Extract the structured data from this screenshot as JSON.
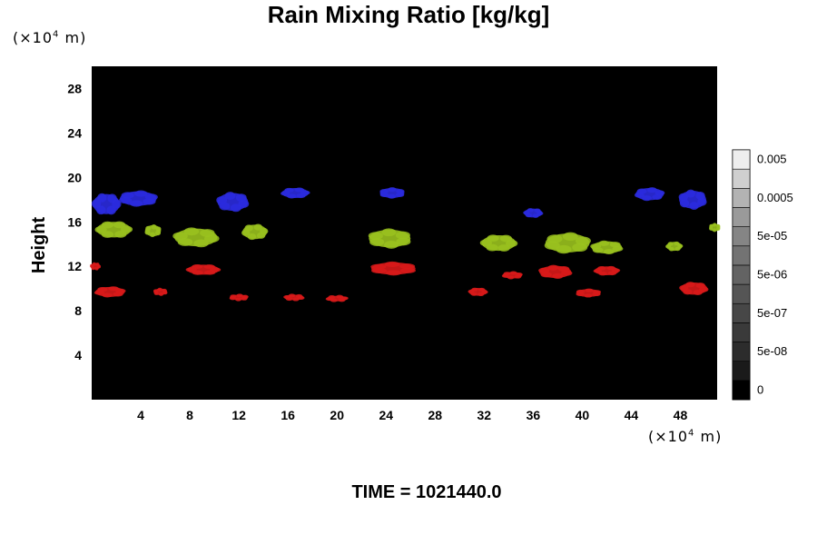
{
  "chart_data": {
    "type": "heatmap",
    "title": "Rain Mixing Ratio [kg/kg]",
    "ylabel": "Height",
    "xlabel": "",
    "x_unit": "(×10",
    "x_unit_exp": "4",
    "x_unit_suffix": " m)",
    "y_unit": "(×10",
    "y_unit_exp": "4",
    "y_unit_suffix": " m)",
    "xlim": [
      0,
      51
    ],
    "ylim": [
      0,
      30
    ],
    "x_ticks": [
      "4",
      "8",
      "12",
      "16",
      "20",
      "24",
      "28",
      "32",
      "36",
      "40",
      "44",
      "48"
    ],
    "y_ticks": [
      "4",
      "8",
      "12",
      "16",
      "20",
      "24",
      "28"
    ],
    "background_color": "#000000",
    "colorbar": {
      "labels": [
        "0",
        "5e-08",
        "5e-07",
        "5e-06",
        "5e-05",
        "0.0005",
        "0.005"
      ],
      "levels": 13,
      "colors": [
        "#000000",
        "#1a1a1a",
        "#2c2c2c",
        "#3a3a3a",
        "#474747",
        "#555555",
        "#636363",
        "#737373",
        "#858585",
        "#9a9a9a",
        "#b3b3b3",
        "#cfcfcf",
        "#eeeeee"
      ]
    },
    "layers": [
      {
        "color": "#2b2bdf",
        "y_range": [
          16.5,
          19.5
        ]
      },
      {
        "color": "#9ac21e",
        "y_range": [
          12.8,
          16.5
        ]
      },
      {
        "color": "#d91a1a",
        "y_range": [
          8.5,
          12.8
        ]
      }
    ],
    "blobs": [
      {
        "layer": 0,
        "x": 1.2,
        "y": 17.6,
        "w": 2.2,
        "h": 1.8
      },
      {
        "layer": 0,
        "x": 3.8,
        "y": 18.1,
        "w": 3.0,
        "h": 1.3
      },
      {
        "layer": 0,
        "x": 11.5,
        "y": 17.8,
        "w": 2.5,
        "h": 1.6
      },
      {
        "layer": 0,
        "x": 16.6,
        "y": 18.6,
        "w": 2.2,
        "h": 0.9
      },
      {
        "layer": 0,
        "x": 24.5,
        "y": 18.6,
        "w": 2.0,
        "h": 0.9
      },
      {
        "layer": 0,
        "x": 36.0,
        "y": 16.8,
        "w": 1.5,
        "h": 0.8
      },
      {
        "layer": 0,
        "x": 45.5,
        "y": 18.5,
        "w": 2.3,
        "h": 1.1
      },
      {
        "layer": 0,
        "x": 49.0,
        "y": 18.0,
        "w": 2.2,
        "h": 1.6
      },
      {
        "layer": 1,
        "x": 1.8,
        "y": 15.3,
        "w": 2.8,
        "h": 1.4
      },
      {
        "layer": 1,
        "x": 5.0,
        "y": 15.2,
        "w": 1.3,
        "h": 1.0
      },
      {
        "layer": 1,
        "x": 8.5,
        "y": 14.6,
        "w": 3.5,
        "h": 1.6
      },
      {
        "layer": 1,
        "x": 13.3,
        "y": 15.1,
        "w": 2.0,
        "h": 1.3
      },
      {
        "layer": 1,
        "x": 24.3,
        "y": 14.5,
        "w": 3.4,
        "h": 1.6
      },
      {
        "layer": 1,
        "x": 33.2,
        "y": 14.1,
        "w": 2.8,
        "h": 1.4
      },
      {
        "layer": 1,
        "x": 38.8,
        "y": 14.1,
        "w": 3.6,
        "h": 1.7
      },
      {
        "layer": 1,
        "x": 42.0,
        "y": 13.7,
        "w": 2.5,
        "h": 1.1
      },
      {
        "layer": 1,
        "x": 47.5,
        "y": 13.8,
        "w": 1.3,
        "h": 0.8
      },
      {
        "layer": 1,
        "x": 50.8,
        "y": 15.5,
        "w": 0.9,
        "h": 0.7
      },
      {
        "layer": 2,
        "x": 0.3,
        "y": 12.0,
        "w": 0.8,
        "h": 0.6
      },
      {
        "layer": 2,
        "x": 1.5,
        "y": 9.7,
        "w": 2.4,
        "h": 0.9
      },
      {
        "layer": 2,
        "x": 5.6,
        "y": 9.7,
        "w": 1.1,
        "h": 0.6
      },
      {
        "layer": 2,
        "x": 9.1,
        "y": 11.7,
        "w": 2.6,
        "h": 0.9
      },
      {
        "layer": 2,
        "x": 12.0,
        "y": 9.2,
        "w": 1.5,
        "h": 0.5
      },
      {
        "layer": 2,
        "x": 16.5,
        "y": 9.2,
        "w": 1.6,
        "h": 0.5
      },
      {
        "layer": 2,
        "x": 20.0,
        "y": 9.1,
        "w": 1.7,
        "h": 0.5
      },
      {
        "layer": 2,
        "x": 24.6,
        "y": 11.8,
        "w": 3.6,
        "h": 1.1
      },
      {
        "layer": 2,
        "x": 31.5,
        "y": 9.7,
        "w": 1.5,
        "h": 0.7
      },
      {
        "layer": 2,
        "x": 34.3,
        "y": 11.2,
        "w": 1.6,
        "h": 0.6
      },
      {
        "layer": 2,
        "x": 37.8,
        "y": 11.5,
        "w": 2.6,
        "h": 1.1
      },
      {
        "layer": 2,
        "x": 42.0,
        "y": 11.6,
        "w": 2.0,
        "h": 0.8
      },
      {
        "layer": 2,
        "x": 40.5,
        "y": 9.6,
        "w": 2.0,
        "h": 0.7
      },
      {
        "layer": 2,
        "x": 49.1,
        "y": 10.0,
        "w": 2.2,
        "h": 1.1
      }
    ]
  },
  "footer": {
    "time_label": "TIME = 1021440.0"
  }
}
